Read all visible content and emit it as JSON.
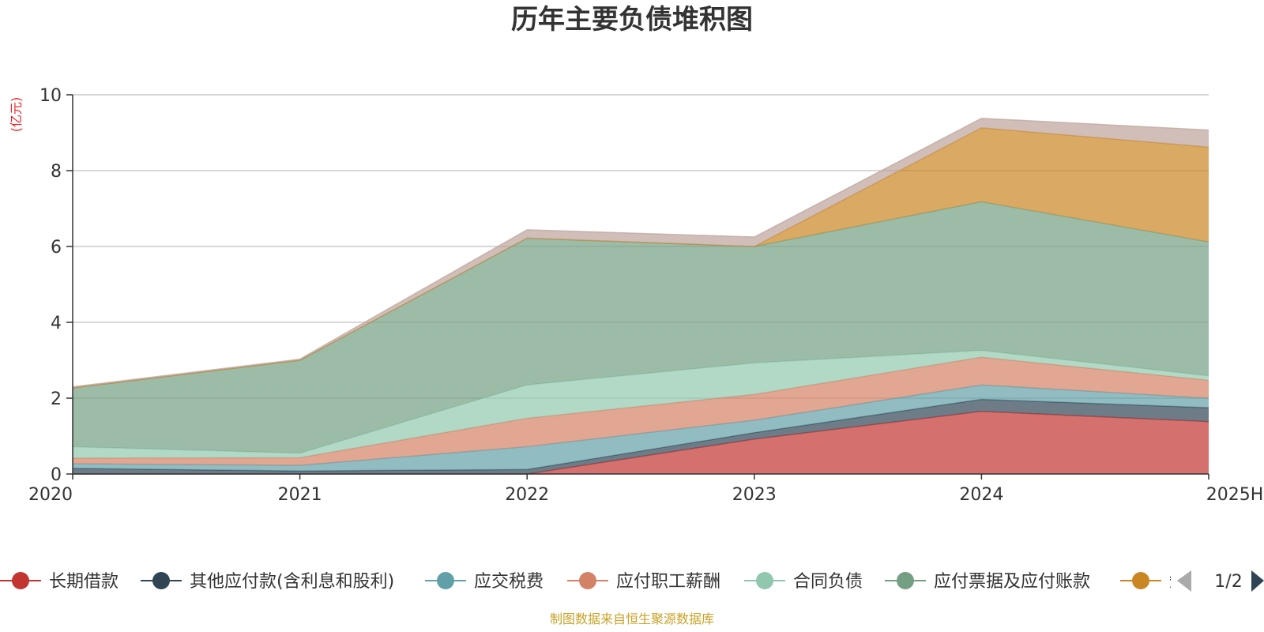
{
  "chart_data": {
    "type": "area",
    "stacked": true,
    "title": "历年主要负债堆积图",
    "unit_label": "(亿元)",
    "source": "制图数据来自恒生聚源数据库",
    "categories": [
      "2020",
      "2021",
      "2022",
      "2023",
      "2024",
      "2025H1"
    ],
    "ylim": [
      0,
      10
    ],
    "yticks": [
      0,
      2,
      4,
      6,
      8,
      10
    ],
    "grid": true,
    "legend_position": "bottom",
    "legend_page": "1/2",
    "series": [
      {
        "name": "长期借款",
        "color": "#c23531",
        "values": [
          0,
          0,
          0,
          0.92,
          1.65,
          1.38
        ]
      },
      {
        "name": "其他应付款(含利息和股利)",
        "color": "#2f4554",
        "values": [
          0.15,
          0.08,
          0.12,
          0.17,
          0.32,
          0.37
        ]
      },
      {
        "name": "应交税费",
        "color": "#61a0a8",
        "values": [
          0.12,
          0.15,
          0.6,
          0.33,
          0.38,
          0.25
        ]
      },
      {
        "name": "应付职工薪酬",
        "color": "#d48265",
        "values": [
          0.15,
          0.2,
          0.75,
          0.68,
          0.73,
          0.47
        ]
      },
      {
        "name": "合同负债",
        "color": "#91c7ae",
        "values": [
          0.3,
          0.12,
          0.88,
          0.83,
          0.18,
          0.12
        ]
      },
      {
        "name": "应付票据及应付账款",
        "color": "#749f83",
        "values": [
          1.55,
          2.45,
          3.87,
          3.07,
          3.92,
          3.53
        ]
      },
      {
        "name": "短期借款",
        "color": "#ca8622",
        "values": [
          0,
          0,
          0,
          0,
          1.95,
          2.5
        ]
      },
      {
        "name": "",
        "color": "#bda29a",
        "values": [
          0.03,
          0.03,
          0.22,
          0.25,
          0.25,
          0.45
        ]
      }
    ]
  }
}
